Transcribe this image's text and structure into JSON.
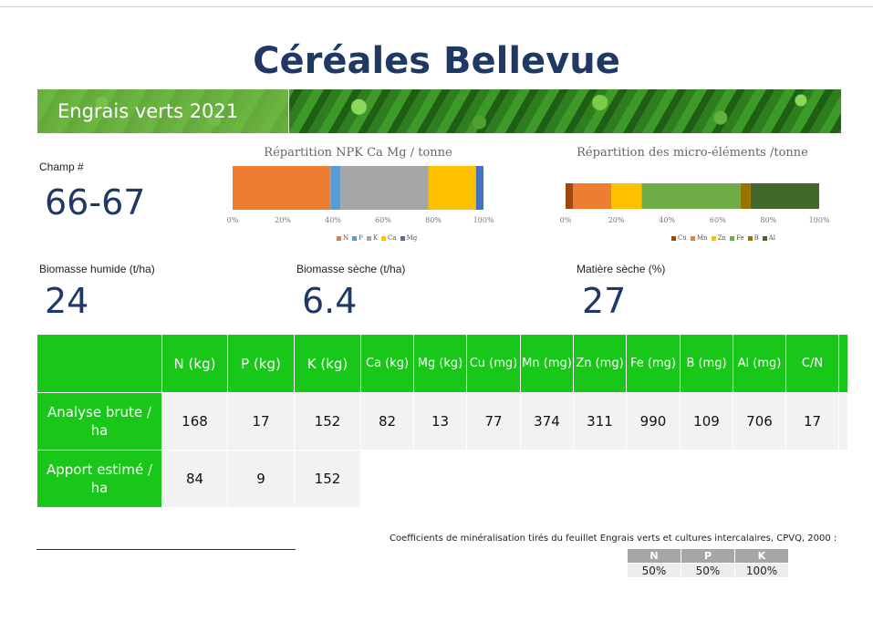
{
  "header": {
    "title": "Céréales Bellevue",
    "banner_label": "Engrais verts 2021"
  },
  "field": {
    "label": "Champ #",
    "value": "66-67"
  },
  "metrics": [
    {
      "label": "Biomasse humide (t/ha)",
      "value": "24"
    },
    {
      "label": "Biomasse sèche (t/ha)",
      "value": "6.4"
    },
    {
      "label": "Matière sèche (%)",
      "value": "27"
    }
  ],
  "chart_data": [
    {
      "type": "bar",
      "orientation": "horizontal-stacked-100",
      "title": "Répartition NPK Ca Mg / tonne",
      "ticks": [
        "0%",
        "20%",
        "40%",
        "60%",
        "80%",
        "100%"
      ],
      "xlim": [
        0,
        100
      ],
      "legend_position": "bottom",
      "series": [
        {
          "name": "N",
          "value": 39,
          "color": "#ed7d31"
        },
        {
          "name": "P",
          "value": 4,
          "color": "#5b9bd5"
        },
        {
          "name": "K",
          "value": 35,
          "color": "#a5a5a5"
        },
        {
          "name": "Ca",
          "value": 19,
          "color": "#ffc000"
        },
        {
          "name": "Mg",
          "value": 3,
          "color": "#4472c4"
        }
      ]
    },
    {
      "type": "bar",
      "orientation": "horizontal-stacked-100",
      "title": "Répartition des micro-éléments /tonne",
      "ticks": [
        "0%",
        "20%",
        "40%",
        "60%",
        "80%",
        "100%"
      ],
      "xlim": [
        0,
        100
      ],
      "legend_position": "bottom",
      "series": [
        {
          "name": "Cu",
          "value": 3,
          "color": "#9e480e"
        },
        {
          "name": "Mn",
          "value": 15,
          "color": "#ed7d31"
        },
        {
          "name": "Zn",
          "value": 12,
          "color": "#ffc000"
        },
        {
          "name": "Fe",
          "value": 39,
          "color": "#70ad47"
        },
        {
          "name": "B",
          "value": 4,
          "color": "#997300"
        },
        {
          "name": "Al",
          "value": 27,
          "color": "#43682b"
        }
      ]
    }
  ],
  "table": {
    "columns": [
      "N (kg)",
      "P (kg)",
      "K (kg)",
      "Ca (kg)",
      "Mg (kg)",
      "Cu (mg)",
      "Mn (mg)",
      "Zn (mg)",
      "Fe (mg)",
      "B (mg)",
      "Al (mg)",
      "C/N"
    ],
    "rows": [
      {
        "label": "Analyse brute / ha",
        "values": [
          "168",
          "17",
          "152",
          "82",
          "13",
          "77",
          "374",
          "311",
          "990",
          "109",
          "706",
          "17"
        ]
      },
      {
        "label": "Apport estimé / ha",
        "values": [
          "84",
          "9",
          "152"
        ]
      }
    ]
  },
  "coefficients": {
    "note": "Coefficients de minéralisation tirés du feuillet Engrais verts et cultures intercalaires, CPVQ, 2000 :",
    "headers": [
      "N",
      "P",
      "K"
    ],
    "values": [
      "50%",
      "50%",
      "100%"
    ]
  },
  "colors": {
    "title": "#1f3864",
    "table_green": "#18c718",
    "value_gray": "#f2f2f2"
  }
}
